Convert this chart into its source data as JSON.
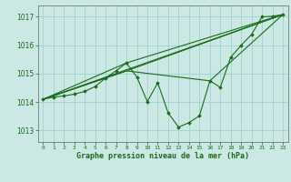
{
  "background_color": "#cce8e4",
  "grid_color": "#99cccc",
  "line_color": "#1a6b1a",
  "xlabel": "Graphe pression niveau de la mer (hPa)",
  "ylim": [
    1012.6,
    1017.4
  ],
  "xlim": [
    -0.5,
    23.5
  ],
  "yticks": [
    1013,
    1014,
    1015,
    1016,
    1017
  ],
  "xticks": [
    0,
    1,
    2,
    3,
    4,
    5,
    6,
    7,
    8,
    9,
    10,
    11,
    12,
    13,
    14,
    15,
    16,
    17,
    18,
    19,
    20,
    21,
    22,
    23
  ],
  "main_line": {
    "x": [
      0,
      1,
      2,
      3,
      4,
      5,
      6,
      7,
      8,
      9,
      10,
      11,
      12,
      13,
      14,
      15,
      16,
      17,
      18,
      19,
      20,
      21,
      22,
      23
    ],
    "y": [
      1014.1,
      1014.18,
      1014.22,
      1014.28,
      1014.38,
      1014.55,
      1014.85,
      1015.1,
      1015.38,
      1014.88,
      1014.02,
      1014.68,
      1013.62,
      1013.12,
      1013.28,
      1013.52,
      1014.75,
      1014.52,
      1015.58,
      1016.0,
      1016.38,
      1017.0,
      1017.02,
      1017.08
    ]
  },
  "trend1": {
    "x": [
      0,
      23
    ],
    "y": [
      1014.1,
      1017.08
    ]
  },
  "trend2": {
    "x": [
      0,
      8,
      23
    ],
    "y": [
      1014.1,
      1015.38,
      1017.08
    ]
  },
  "trend3": {
    "x": [
      0,
      8,
      23
    ],
    "y": [
      1014.1,
      1015.1,
      1017.08
    ]
  },
  "trend4": {
    "x": [
      0,
      8,
      16,
      23
    ],
    "y": [
      1014.1,
      1015.1,
      1014.75,
      1017.08
    ]
  }
}
